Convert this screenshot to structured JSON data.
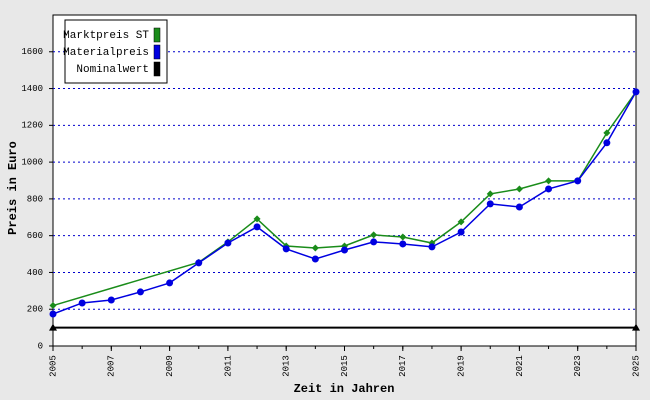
{
  "chart_data": {
    "type": "line",
    "xlabel": "Zeit in Jahren",
    "ylabel": "Preis in Euro",
    "xlim": [
      2005,
      2025
    ],
    "xticks": [
      2005,
      2007,
      2009,
      2011,
      2013,
      2015,
      2017,
      2019,
      2021,
      2023,
      2025
    ],
    "ylim": [
      0,
      1800
    ],
    "yticks": [
      0,
      200,
      400,
      600,
      800,
      1000,
      1200,
      1400,
      1600
    ],
    "grid": true,
    "legend": "upper left",
    "series": [
      {
        "name": "Marktpreis ST",
        "color": "#1a8c1a",
        "marker": "diamond",
        "x": [
          2005,
          2010,
          2011,
          2012,
          2013,
          2014,
          2015,
          2016,
          2017,
          2018,
          2019,
          2020,
          2021,
          2022,
          2023,
          2024,
          2025
        ],
        "values": [
          220,
          455,
          566,
          691,
          544,
          533,
          544,
          604,
          593,
          560,
          675,
          827,
          854,
          898,
          898,
          1159,
          1382
        ]
      },
      {
        "name": "Materialpreis",
        "color": "#0000e0",
        "marker": "circle",
        "x": [
          2005,
          2006,
          2007,
          2008,
          2009,
          2010,
          2011,
          2012,
          2013,
          2014,
          2015,
          2016,
          2017,
          2018,
          2019,
          2020,
          2021,
          2022,
          2023,
          2024,
          2025
        ],
        "values": [
          174,
          234,
          250,
          294,
          343,
          452,
          560,
          648,
          528,
          473,
          522,
          566,
          555,
          539,
          620,
          773,
          756,
          854,
          898,
          1105,
          1382
        ]
      },
      {
        "name": "Nominalwert",
        "color": "#000000",
        "marker": "triangle",
        "x": [
          2005,
          2025
        ],
        "values": [
          100,
          100
        ]
      }
    ]
  }
}
